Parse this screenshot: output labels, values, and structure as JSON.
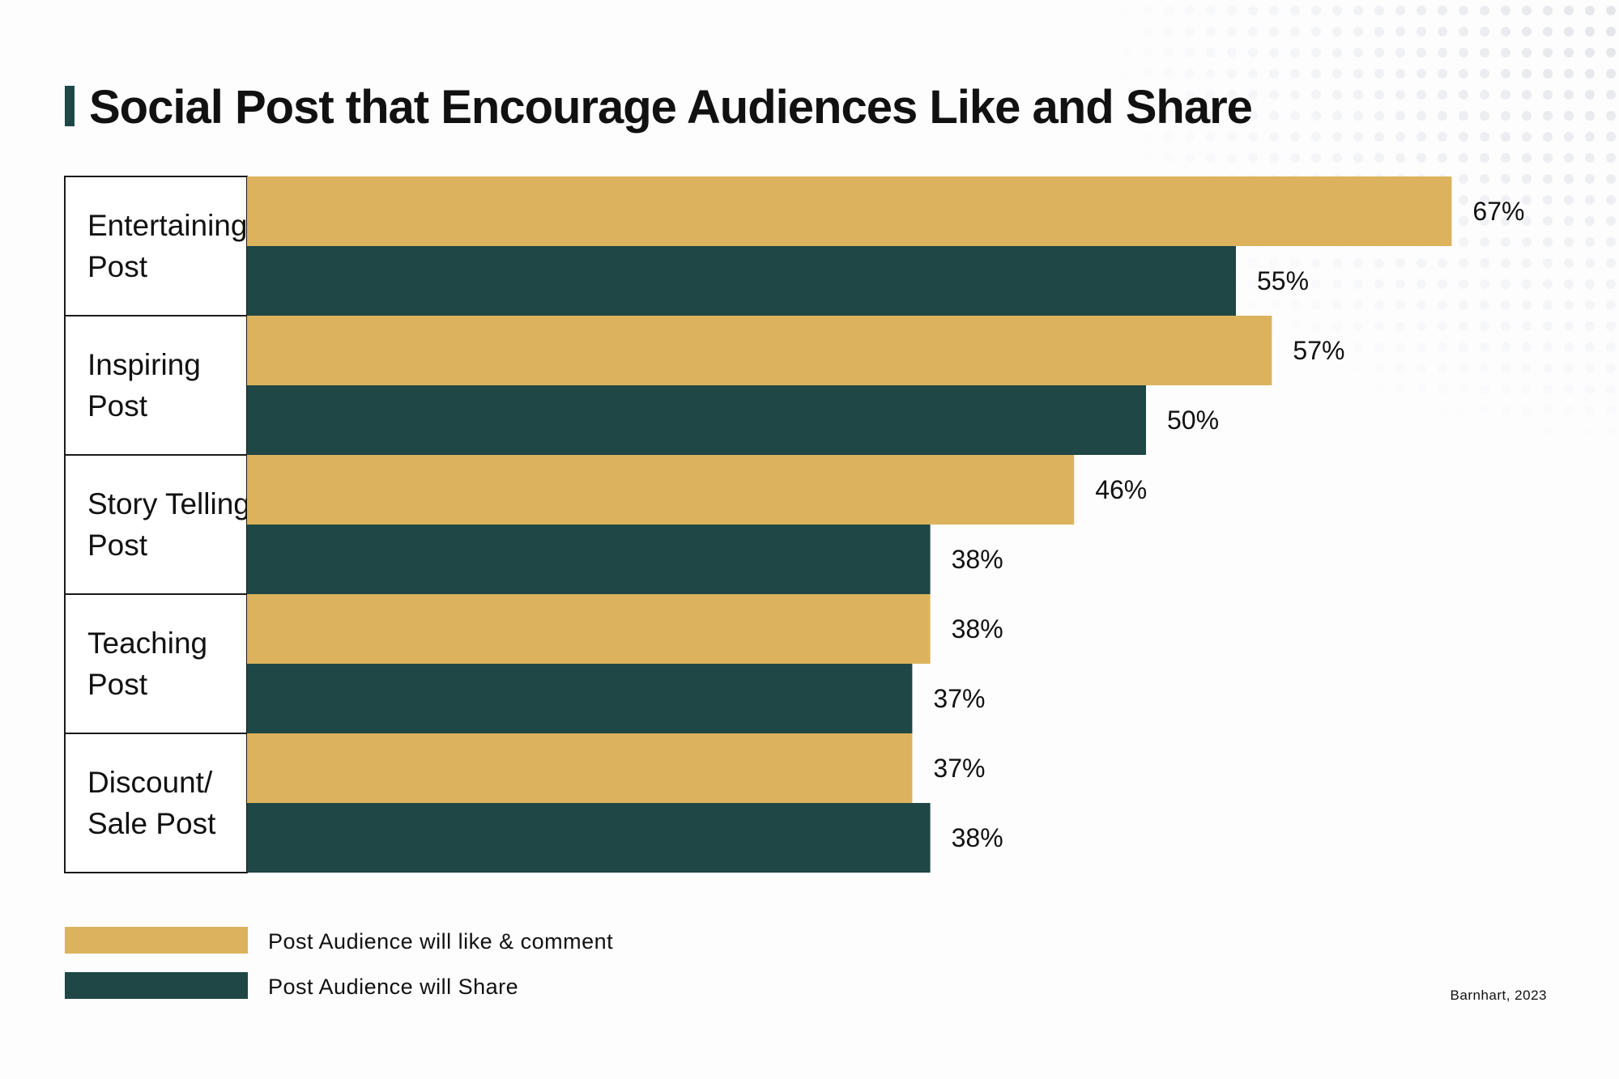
{
  "chart_data": {
    "type": "bar",
    "orientation": "horizontal",
    "title": "Social Post that Encourage Audiences Like and Share",
    "categories": [
      [
        "Entertaining",
        "Post"
      ],
      [
        "Inspiring",
        "Post"
      ],
      [
        "Story Telling",
        "Post"
      ],
      [
        "Teaching",
        "Post"
      ],
      [
        "Discount/",
        "Sale Post"
      ]
    ],
    "series": [
      {
        "name": "Post Audience will like & comment",
        "color": "#dcb35c",
        "values": [
          67,
          57,
          46,
          38,
          37
        ],
        "labels": [
          "67%",
          "57%",
          "46%",
          "38%",
          "37%"
        ]
      },
      {
        "name": "Post Audience will Share",
        "color": "#1e4745",
        "values": [
          55,
          50,
          38,
          37,
          38
        ],
        "labels": [
          "55%",
          "50%",
          "38%",
          "37%",
          "38%"
        ]
      }
    ],
    "xlabel": "",
    "ylabel": "",
    "xlim": [
      0,
      100
    ],
    "grid": false,
    "legend": "bottom-left",
    "source": "Barnhart, 2023",
    "title_accent_color": "#1e4745"
  }
}
